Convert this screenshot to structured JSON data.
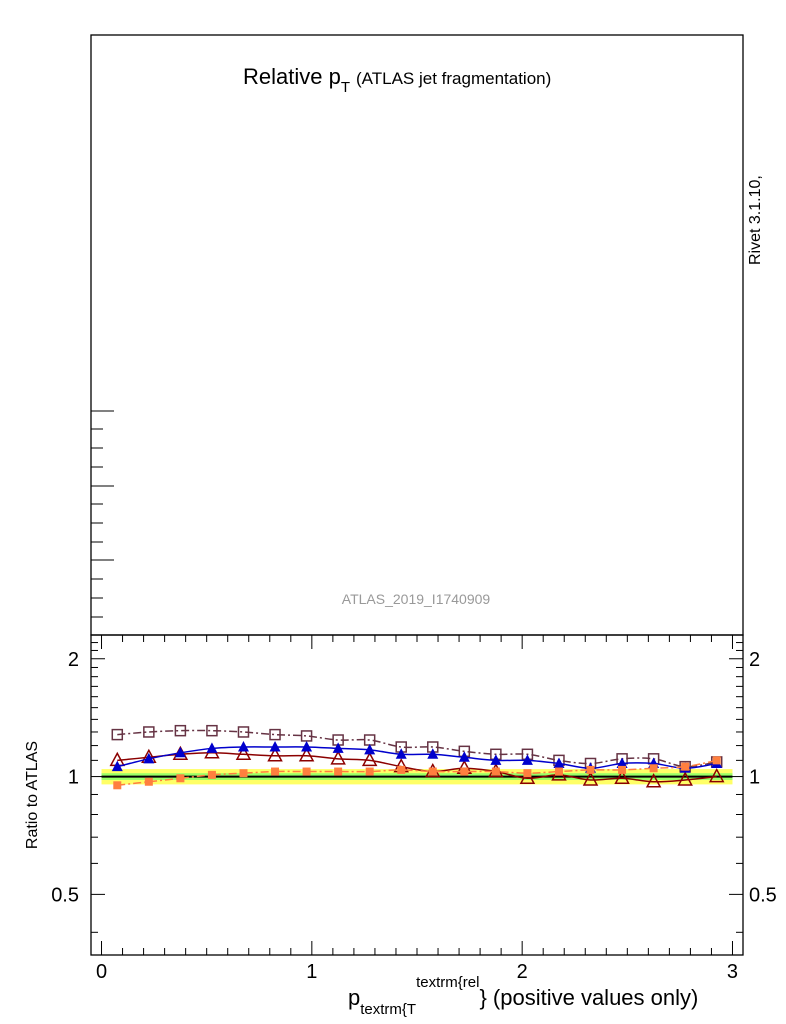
{
  "title": {
    "main": "Relative p",
    "sub": "T",
    "extra": "(ATLAS jet fragmentation)"
  },
  "side_label": "Rivet 3.1.10,",
  "watermark": "ATLAS_2019_I1740909",
  "xlabel": {
    "p": "p",
    "sub": "textrm{T",
    "sup": "textrm{rel",
    "rest": "} (positive values only)"
  },
  "ylabel": "Ratio to ATLAS",
  "colors": {
    "ref": "#000000",
    "band_inner": "#99ff66",
    "band_outer": "#ffff66",
    "s1": "#663344",
    "s2": "#8b0000",
    "s3": "#0000cc",
    "s4": "#ff7f3f"
  },
  "chart_data": {
    "type": "line",
    "xlim": [
      -0.05,
      3.05
    ],
    "ylim": [
      0.35,
      2.3
    ],
    "yscale": "log",
    "x_ticks": [
      "0",
      "1",
      "2",
      "3"
    ],
    "y_ticks": [
      "0.5",
      "1",
      "2"
    ],
    "x": [
      0.075,
      0.225,
      0.375,
      0.525,
      0.675,
      0.825,
      0.975,
      1.125,
      1.275,
      1.425,
      1.575,
      1.725,
      1.875,
      2.025,
      2.175,
      2.325,
      2.475,
      2.625,
      2.775,
      2.925
    ],
    "series": [
      {
        "values": [
          1.0,
          1.0,
          1.0,
          1.0,
          1.0,
          1.0,
          1.0,
          1.0,
          1.0,
          1.0,
          1.0,
          1.0,
          1.0,
          1.0,
          1.0,
          1.0,
          1.0,
          1.0,
          1.0,
          1.0
        ],
        "band_inner": 0.02,
        "band_outer": 0.045
      },
      {
        "values": [
          1.28,
          1.3,
          1.31,
          1.31,
          1.3,
          1.28,
          1.27,
          1.24,
          1.24,
          1.19,
          1.19,
          1.16,
          1.14,
          1.14,
          1.1,
          1.08,
          1.11,
          1.11,
          1.06,
          1.09
        ]
      },
      {
        "values": [
          1.1,
          1.12,
          1.14,
          1.15,
          1.14,
          1.13,
          1.13,
          1.11,
          1.1,
          1.06,
          1.03,
          1.05,
          1.03,
          0.99,
          1.01,
          0.98,
          0.99,
          0.97,
          0.98,
          1.0
        ]
      },
      {
        "values": [
          1.06,
          1.11,
          1.15,
          1.18,
          1.19,
          1.19,
          1.19,
          1.18,
          1.17,
          1.14,
          1.14,
          1.12,
          1.1,
          1.1,
          1.08,
          1.05,
          1.08,
          1.08,
          1.05,
          1.08
        ]
      },
      {
        "values": [
          0.95,
          0.97,
          0.99,
          1.01,
          1.02,
          1.03,
          1.03,
          1.03,
          1.03,
          1.04,
          1.03,
          1.03,
          1.03,
          1.02,
          1.03,
          1.04,
          1.04,
          1.05,
          1.06,
          1.1
        ]
      }
    ]
  }
}
